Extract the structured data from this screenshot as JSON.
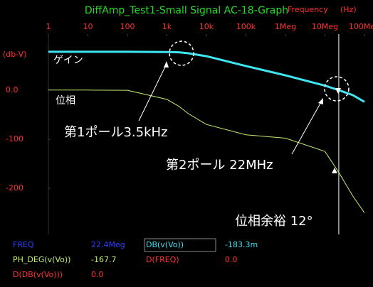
{
  "chart_data": {
    "type": "line",
    "title": "DiffAmp_Test1-Small Signal AC-18-Graph",
    "x_label": "Frequency",
    "x_unit": "(Hz)",
    "y_label": "(db-V)",
    "log_x": true,
    "xlim": [
      1,
      100000000
    ],
    "xticks": [
      1,
      10,
      100,
      {
        "value": 1000,
        "label": "1k"
      },
      {
        "value": 10000,
        "label": "10k"
      },
      {
        "value": 100000,
        "label": "100k"
      },
      {
        "value": 1000000,
        "label": "1Meg"
      },
      {
        "value": 10000000,
        "label": "10Meg"
      },
      {
        "value": 100000000,
        "label": "100Meg"
      }
    ],
    "ylim": [
      -294,
      114
    ],
    "yticks": [
      {
        "value": 0,
        "label": "0.0"
      },
      -100,
      -200
    ],
    "x": [
      1,
      10,
      100,
      1000,
      2000,
      3500,
      10000,
      100000,
      1000000,
      10000000,
      22400000,
      50000000,
      100000000
    ],
    "series": [
      {
        "name": "ゲイン",
        "color": "#3ee6f2",
        "values": [
          78,
          78,
          78,
          77.6,
          77,
          75,
          69,
          49,
          30,
          9,
          -0.2,
          -10,
          -24
        ]
      },
      {
        "name": "位相",
        "color": "#c4ee70",
        "values": [
          0,
          0,
          -0.5,
          -19,
          -33,
          -48,
          -70,
          -91,
          -98,
          -125,
          -167.7,
          -215,
          -250
        ]
      }
    ],
    "cursor_x": 22400000,
    "annotations": [
      "第1ポール3.5kHz",
      "第2ポール 22MHz",
      "位相余裕 12°"
    ],
    "readouts": [
      [
        {
          "text": "FREQ"
        },
        {
          "text": "22.4Meg"
        },
        {
          "text": "DB(v(Vo))"
        },
        {
          "text": "-183.3m"
        }
      ],
      [
        {
          "text": "PH_DEG(v(Vo))"
        },
        {
          "text": "-167.7"
        },
        {
          "text": "D(FREQ)"
        },
        {
          "text": "0.0"
        }
      ],
      [
        {
          "text": "D(DB(v(Vo)))"
        },
        {
          "text": "0.0"
        }
      ]
    ]
  }
}
